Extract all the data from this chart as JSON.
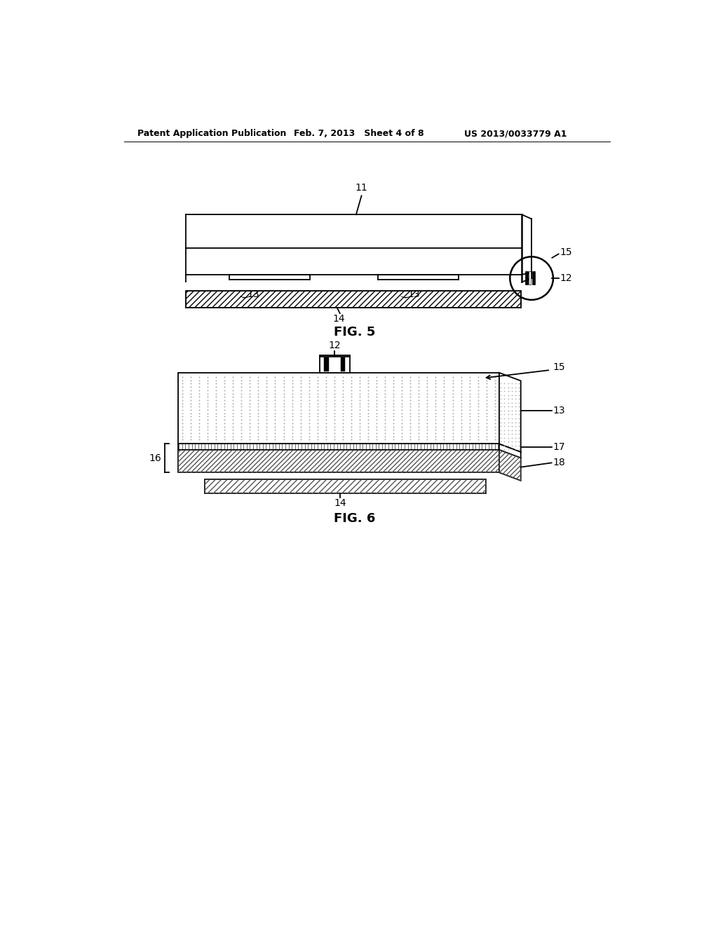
{
  "bg_color": "#ffffff",
  "header_left": "Patent Application Publication",
  "header_mid": "Feb. 7, 2013   Sheet 4 of 8",
  "header_right": "US 2013/0033779 A1",
  "fig5_caption": "FIG. 5",
  "fig6_caption": "FIG. 6",
  "line_color": "#000000"
}
